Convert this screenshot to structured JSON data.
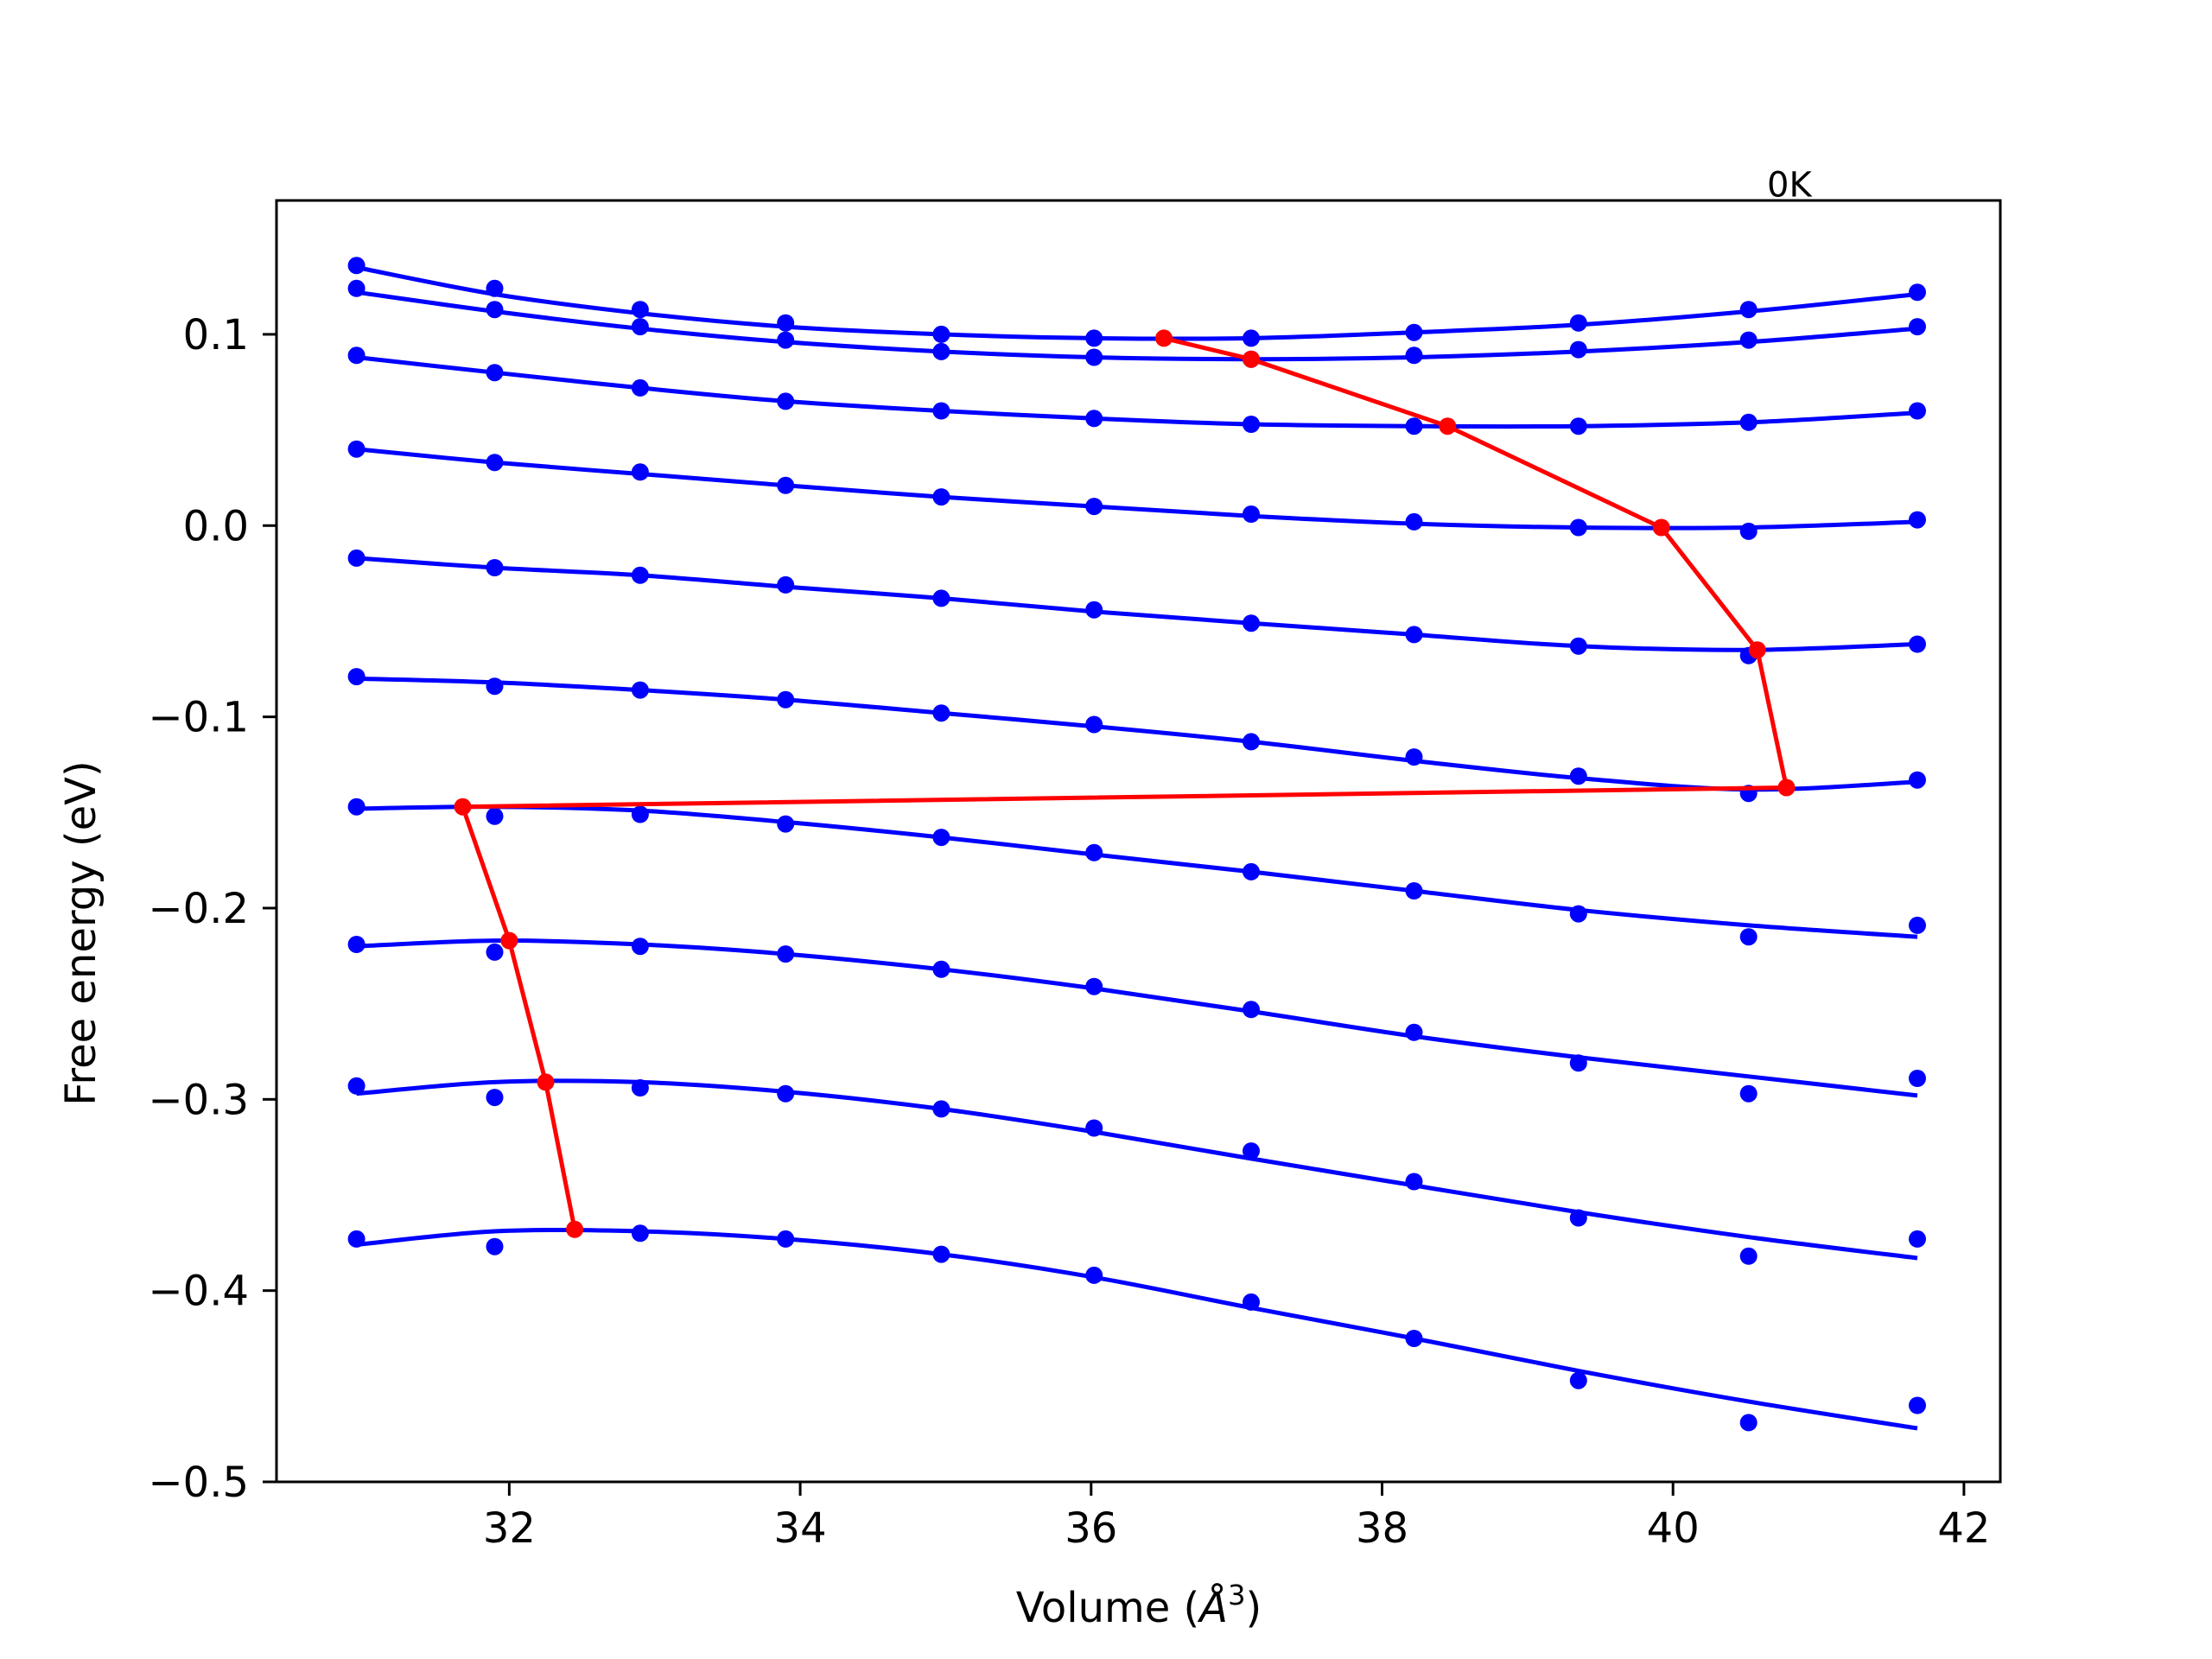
{
  "chart_data": {
    "type": "line",
    "xlabel": "Volume (",
    "xlabel_sym": "Å",
    "xlabel_exp": "3",
    "xlabel_close": ")",
    "ylabel": "Free energy (eV)",
    "annotations": [
      {
        "text": "0K",
        "x": 40.8,
        "y": 0.172
      }
    ],
    "xlim": [
      30.4,
      42.25
    ],
    "ylim": [
      -0.5,
      0.17
    ],
    "xticks": [
      {
        "value": 32,
        "label": "32"
      },
      {
        "value": 34,
        "label": "34"
      },
      {
        "value": 36,
        "label": "36"
      },
      {
        "value": 38,
        "label": "38"
      },
      {
        "value": 40,
        "label": "40"
      },
      {
        "value": 42,
        "label": "42"
      }
    ],
    "yticks": [
      {
        "value": 0.1,
        "label": "0.1"
      },
      {
        "value": 0.0,
        "label": "0.0"
      },
      {
        "value": -0.1,
        "label": "−0.1"
      },
      {
        "value": -0.2,
        "label": "−0.2"
      },
      {
        "value": -0.3,
        "label": "−0.3"
      },
      {
        "value": -0.4,
        "label": "−0.4"
      },
      {
        "value": -0.5,
        "label": "−0.5"
      }
    ],
    "x": [
      30.95,
      31.9,
      32.9,
      33.9,
      34.97,
      36.02,
      37.1,
      38.22,
      39.35,
      40.52,
      41.68
    ],
    "series": [
      {
        "color": "#0000ff",
        "points": [
          0.136,
          0.124,
          0.113,
          0.106,
          0.1,
          0.098,
          0.098,
          0.101,
          0.106,
          0.113,
          0.122
        ],
        "fit": [
          0.135,
          0.121,
          0.111,
          0.104,
          0.1,
          0.098,
          0.098,
          0.101,
          0.105,
          0.112,
          0.121
        ]
      },
      {
        "color": "#0000ff",
        "points": [
          0.124,
          0.113,
          0.104,
          0.097,
          0.091,
          0.088,
          0.087,
          0.089,
          0.092,
          0.097,
          0.104
        ],
        "fit": [
          0.122,
          0.112,
          0.103,
          0.096,
          0.091,
          0.088,
          0.087,
          0.088,
          0.091,
          0.096,
          0.103
        ]
      },
      {
        "color": "#0000ff",
        "points": [
          0.089,
          0.08,
          0.072,
          0.065,
          0.06,
          0.056,
          0.053,
          0.052,
          0.052,
          0.054,
          0.06
        ],
        "fit": [
          0.088,
          0.08,
          0.072,
          0.065,
          0.06,
          0.056,
          0.053,
          0.052,
          0.052,
          0.054,
          0.059
        ]
      },
      {
        "color": "#0000ff",
        "points": [
          0.04,
          0.033,
          0.028,
          0.021,
          0.015,
          0.01,
          0.006,
          0.002,
          -0.001,
          -0.003,
          0.003
        ],
        "fit": [
          0.04,
          0.033,
          0.027,
          0.021,
          0.015,
          0.01,
          0.005,
          0.001,
          -0.001,
          -0.001,
          0.002
        ]
      },
      {
        "color": "#0000ff",
        "points": [
          -0.017,
          -0.022,
          -0.026,
          -0.031,
          -0.038,
          -0.044,
          -0.051,
          -0.057,
          -0.063,
          -0.068,
          -0.062
        ],
        "fit": [
          -0.017,
          -0.022,
          -0.026,
          -0.032,
          -0.038,
          -0.045,
          -0.051,
          -0.057,
          -0.063,
          -0.065,
          -0.062
        ]
      },
      {
        "color": "#0000ff",
        "points": [
          -0.079,
          -0.084,
          -0.086,
          -0.091,
          -0.098,
          -0.104,
          -0.113,
          -0.121,
          -0.131,
          -0.14,
          -0.133
        ],
        "fit": [
          -0.08,
          -0.082,
          -0.086,
          -0.091,
          -0.098,
          -0.105,
          -0.113,
          -0.123,
          -0.132,
          -0.138,
          -0.134
        ]
      },
      {
        "color": "#0000ff",
        "points": [
          -0.147,
          -0.152,
          -0.151,
          -0.156,
          -0.163,
          -0.171,
          -0.181,
          -0.191,
          -0.203,
          -0.215,
          -0.209
        ],
        "fit": [
          -0.148,
          -0.147,
          -0.149,
          -0.155,
          -0.163,
          -0.172,
          -0.181,
          -0.191,
          -0.201,
          -0.209,
          -0.215
        ]
      },
      {
        "color": "#0000ff",
        "points": [
          -0.219,
          -0.223,
          -0.22,
          -0.224,
          -0.232,
          -0.241,
          -0.253,
          -0.265,
          -0.281,
          -0.297,
          -0.289
        ],
        "fit": [
          -0.22,
          -0.217,
          -0.219,
          -0.224,
          -0.232,
          -0.242,
          -0.254,
          -0.267,
          -0.278,
          -0.288,
          -0.298
        ]
      },
      {
        "color": "#0000ff",
        "points": [
          -0.293,
          -0.299,
          -0.294,
          -0.297,
          -0.305,
          -0.315,
          -0.327,
          -0.343,
          -0.362,
          -0.382,
          -0.373
        ],
        "fit": [
          -0.297,
          -0.291,
          -0.291,
          -0.296,
          -0.305,
          -0.317,
          -0.331,
          -0.345,
          -0.359,
          -0.372,
          -0.383
        ]
      },
      {
        "color": "#0000ff",
        "points": [
          -0.373,
          -0.377,
          -0.37,
          -0.373,
          -0.381,
          -0.392,
          -0.406,
          -0.425,
          -0.447,
          -0.469,
          -0.46
        ],
        "fit": [
          -0.376,
          -0.369,
          -0.369,
          -0.373,
          -0.381,
          -0.393,
          -0.409,
          -0.425,
          -0.442,
          -0.458,
          -0.472
        ]
      }
    ],
    "minima_path": {
      "color": "#ff0000",
      "x": [
        36.5,
        37.1,
        38.45,
        39.92,
        40.58,
        40.78,
        31.68,
        32.0,
        32.25,
        32.45
      ],
      "y": [
        0.098,
        0.087,
        0.052,
        -0.001,
        -0.065,
        -0.137,
        -0.147,
        -0.217,
        -0.291,
        -0.368
      ]
    }
  }
}
